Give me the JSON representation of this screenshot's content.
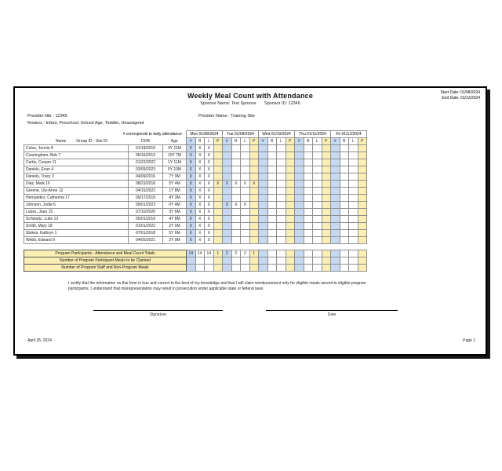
{
  "report": {
    "title": "Weekly Meal Count with Attendance",
    "sponsor_name": "Sponsor Name: Test Sponsor",
    "sponsor_id": "Sponsor ID: 12345",
    "start_date": "Start Date: 01/08/2024",
    "end_date": "End Date: 01/12/2024",
    "provider_nbr": "Provider Nbr : 12345",
    "provider_name": "Provider Name : Training Site",
    "rosters": "Rosters : Infant, Preschool, School Age, Toddler, Unassigned"
  },
  "table": {
    "attendance_note": "# corresponds to daily attendance:",
    "columns": {
      "name": "Name",
      "group": "Group ID - Site ID",
      "dob": "DOB",
      "age": "Age"
    },
    "days": [
      "Mon 01/08/2024",
      "Tue 01/09/2024",
      "Wed 01/10/2024",
      "Thu 01/11/2024",
      "Fri 01/12/2024"
    ],
    "meal_cols": [
      "#",
      "B",
      "L",
      "P"
    ],
    "rows": [
      {
        "name": "Colon, Jennie 8",
        "dob": "01/18/2019",
        "age": "4Y 11M",
        "marks": [
          "X",
          "X",
          "X",
          "",
          "",
          "",
          "",
          "",
          "",
          "",
          "",
          "",
          "",
          "",
          "",
          "",
          "",
          "",
          "",
          ""
        ]
      },
      {
        "name": "Cunningham, Bob 7",
        "dob": "05/16/2013",
        "age": "10Y 7M",
        "marks": [
          "X",
          "X",
          "X",
          "",
          "",
          "",
          "",
          "",
          "",
          "",
          "",
          "",
          "",
          "",
          "",
          "",
          "",
          "",
          "",
          ""
        ]
      },
      {
        "name": "Curtis, Cooper 11",
        "dob": "01/22/2022",
        "age": "1Y 11M",
        "marks": [
          "X",
          "X",
          "X",
          "",
          "",
          "",
          "",
          "",
          "",
          "",
          "",
          "",
          "",
          "",
          "",
          "",
          "",
          "",
          "",
          ""
        ]
      },
      {
        "name": "Daniels, Evan 4",
        "dob": "03/09/2023",
        "age": "0Y 10M",
        "marks": [
          "X",
          "X",
          "X",
          "",
          "",
          "",
          "",
          "",
          "",
          "",
          "",
          "",
          "",
          "",
          "",
          "",
          "",
          "",
          "",
          ""
        ]
      },
      {
        "name": "Daniels, Tracy 3",
        "dob": "04/09/2016",
        "age": "7Y 9M",
        "marks": [
          "X",
          "X",
          "X",
          "",
          "",
          "",
          "",
          "",
          "",
          "",
          "",
          "",
          "",
          "",
          "",
          "",
          "",
          "",
          "",
          ""
        ]
      },
      {
        "name": "Diaz, Mark 16",
        "dob": "08/23/2018",
        "age": "5Y 4M",
        "marks": [
          "X",
          "X",
          "X",
          "X",
          "X",
          "X",
          "X",
          "X",
          "",
          "",
          "",
          "",
          "",
          "",
          "",
          "",
          "",
          "",
          "",
          ""
        ]
      },
      {
        "name": "Greene, Lily-Anne 12",
        "dob": "04/15/2022",
        "age": "1Y 8M",
        "marks": [
          "X",
          "X",
          "X",
          "",
          "",
          "",
          "",
          "",
          "",
          "",
          "",
          "",
          "",
          "",
          "",
          "",
          "",
          "",
          "",
          ""
        ]
      },
      {
        "name": "Hernandez, Catherina 17",
        "dob": "09/17/2019",
        "age": "4Y 3M",
        "marks": [
          "X",
          "X",
          "X",
          "",
          "",
          "",
          "",
          "",
          "",
          "",
          "",
          "",
          "",
          "",
          "",
          "",
          "",
          "",
          "",
          ""
        ]
      },
      {
        "name": "Johnson, Jodie 6",
        "dob": "09/01/2023",
        "age": "0Y 4M",
        "marks": [
          "X",
          "X",
          "X",
          "",
          "X",
          "X",
          "X",
          "",
          "",
          "",
          "",
          "",
          "",
          "",
          "",
          "",
          "",
          "",
          "",
          ""
        ]
      },
      {
        "name": "Lopez, Juan 15",
        "dob": "07/10/2020",
        "age": "3Y 6M",
        "marks": [
          "X",
          "X",
          "X",
          "",
          "",
          "",
          "",
          "",
          "",
          "",
          "",
          "",
          "",
          "",
          "",
          "",
          "",
          "",
          "",
          ""
        ]
      },
      {
        "name": "Schwartz, Luke 13",
        "dob": "05/01/2019",
        "age": "4Y 8M",
        "marks": [
          "X",
          "X",
          "X",
          "",
          "",
          "",
          "",
          "",
          "",
          "",
          "",
          "",
          "",
          "",
          "",
          "",
          "",
          "",
          "",
          ""
        ]
      },
      {
        "name": "Smith, Mary 18",
        "dob": "01/01/2022",
        "age": "2Y 0M",
        "marks": [
          "X",
          "X",
          "X",
          "",
          "",
          "",
          "",
          "",
          "",
          "",
          "",
          "",
          "",
          "",
          "",
          "",
          "",
          "",
          "",
          ""
        ]
      },
      {
        "name": "Stokes, Kathryn 1",
        "dob": "07/01/2018",
        "age": "5Y 6M",
        "marks": [
          "X",
          "X",
          "X",
          "",
          "",
          "",
          "",
          "",
          "",
          "",
          "",
          "",
          "",
          "",
          "",
          "",
          "",
          "",
          "",
          ""
        ]
      },
      {
        "name": "Webb, Edward 9",
        "dob": "04/05/2021",
        "age": "2Y 9M",
        "marks": [
          "X",
          "X",
          "X",
          "",
          "",
          "",
          "",
          "",
          "",
          "",
          "",
          "",
          "",
          "",
          "",
          "",
          "",
          "",
          "",
          ""
        ]
      }
    ]
  },
  "totals": {
    "rows": [
      {
        "label": "Program Participants - Attendance and Meal Count Totals",
        "values": [
          "14",
          "14",
          "14",
          "1",
          "2",
          "2",
          "2",
          "1",
          "",
          "",
          "",
          "",
          "",
          "",
          "",
          "",
          "",
          "",
          "",
          ""
        ]
      },
      {
        "label": "Number of Program Participant Meals to be Claimed",
        "values": [
          "",
          "",
          "",
          "",
          "",
          "",
          "",
          "",
          "",
          "",
          "",
          "",
          "",
          "",
          "",
          "",
          "",
          "",
          "",
          ""
        ]
      },
      {
        "label": "Number of Program Staff and Non-Program Meals",
        "values": [
          "",
          "",
          "",
          "",
          "",
          "",
          "",
          "",
          "",
          "",
          "",
          "",
          "",
          "",
          "",
          "",
          "",
          "",
          "",
          ""
        ]
      }
    ]
  },
  "certification": {
    "line1": "I certify that the information on this form is true and correct to the best of my knowledge and that I will claim reimbursement only for eligible meals served to eligible program",
    "line2": "participants. I understand that misrepresentation may result in prosecution under applicable state or federal laws."
  },
  "signature": {
    "signature_label": "Signature",
    "date_label": "Date"
  },
  "footer": {
    "print_date": "April 25, 2024",
    "page": "Page 1"
  },
  "colors": {
    "attendance_column": "#C6D9F0",
    "pm_column": "#FBEFB6"
  }
}
